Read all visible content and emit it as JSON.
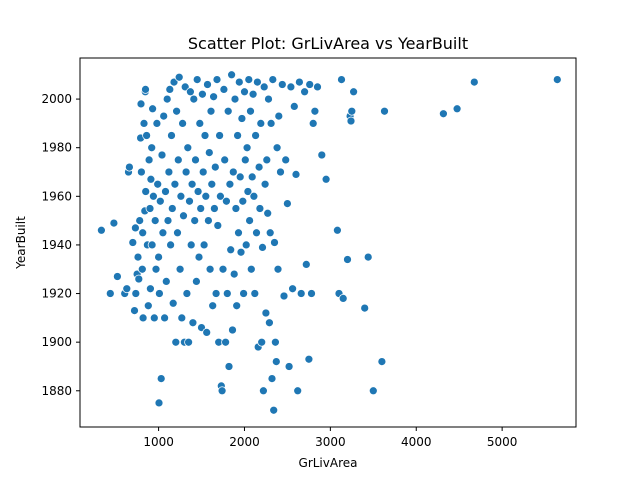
{
  "chart_data": {
    "type": "scatter",
    "title": "Scatter Plot: GrLivArea vs YearBuilt",
    "xlabel": "GrLivArea",
    "ylabel": "YearBuilt",
    "xlim": [
      85,
      5860
    ],
    "ylim": [
      1865.1,
      2016.9
    ],
    "xticks": [
      1000,
      2000,
      3000,
      4000,
      5000
    ],
    "yticks": [
      1880,
      1900,
      1920,
      1940,
      1960,
      1980,
      2000
    ],
    "grid": false,
    "legend": "none",
    "marker_color": "#1f77b4",
    "marker_edge": "#ffffff",
    "series": [
      {
        "points": [
          [
            334,
            1946
          ],
          [
            438,
            1920
          ],
          [
            480,
            1949
          ],
          [
            520,
            1927
          ],
          [
            605,
            1920
          ],
          [
            630,
            1922
          ],
          [
            650,
            1970
          ],
          [
            660,
            1972
          ],
          [
            700,
            1941
          ],
          [
            720,
            1913
          ],
          [
            730,
            1947
          ],
          [
            735,
            1920
          ],
          [
            750,
            1928
          ],
          [
            760,
            1935
          ],
          [
            770,
            1926
          ],
          [
            780,
            1950
          ],
          [
            790,
            1984
          ],
          [
            795,
            1998
          ],
          [
            800,
            1970
          ],
          [
            810,
            1930
          ],
          [
            815,
            1945
          ],
          [
            820,
            1910
          ],
          [
            830,
            1990
          ],
          [
            840,
            1954
          ],
          [
            845,
            2003
          ],
          [
            848,
            2004
          ],
          [
            850,
            1962
          ],
          [
            860,
            1985
          ],
          [
            870,
            1940
          ],
          [
            880,
            1915
          ],
          [
            890,
            1975
          ],
          [
            900,
            1955
          ],
          [
            905,
            1922
          ],
          [
            910,
            1967
          ],
          [
            920,
            1980
          ],
          [
            925,
            1940
          ],
          [
            930,
            1996
          ],
          [
            940,
            1960
          ],
          [
            950,
            1910
          ],
          [
            960,
            1950
          ],
          [
            970,
            1930
          ],
          [
            980,
            1990
          ],
          [
            990,
            1965
          ],
          [
            1000,
            1935
          ],
          [
            1005,
            1875
          ],
          [
            1010,
            1920
          ],
          [
            1020,
            1958
          ],
          [
            1030,
            1885
          ],
          [
            1040,
            1977
          ],
          [
            1050,
            1945
          ],
          [
            1060,
            1993
          ],
          [
            1070,
            1910
          ],
          [
            1080,
            1962
          ],
          [
            1090,
            1925
          ],
          [
            1100,
            2000
          ],
          [
            1110,
            1950
          ],
          [
            1120,
            1970
          ],
          [
            1130,
            2004
          ],
          [
            1140,
            1940
          ],
          [
            1150,
            1985
          ],
          [
            1160,
            1955
          ],
          [
            1170,
            1916
          ],
          [
            1180,
            2007
          ],
          [
            1190,
            1965
          ],
          [
            1200,
            1900
          ],
          [
            1210,
            1995
          ],
          [
            1220,
            1945
          ],
          [
            1230,
            1975
          ],
          [
            1240,
            2009
          ],
          [
            1250,
            1930
          ],
          [
            1260,
            1960
          ],
          [
            1270,
            1910
          ],
          [
            1280,
            1990
          ],
          [
            1290,
            1952
          ],
          [
            1300,
            1900
          ],
          [
            1310,
            2005
          ],
          [
            1320,
            1970
          ],
          [
            1330,
            1920
          ],
          [
            1340,
            1980
          ],
          [
            1350,
            1900
          ],
          [
            1360,
            1958
          ],
          [
            1370,
            2003
          ],
          [
            1380,
            1940
          ],
          [
            1390,
            1965
          ],
          [
            1400,
            1908
          ],
          [
            1410,
            2000
          ],
          [
            1420,
            1950
          ],
          [
            1430,
            1975
          ],
          [
            1440,
            1925
          ],
          [
            1450,
            2008
          ],
          [
            1460,
            1962
          ],
          [
            1470,
            1935
          ],
          [
            1480,
            1990
          ],
          [
            1490,
            1955
          ],
          [
            1500,
            1906
          ],
          [
            1510,
            2002
          ],
          [
            1520,
            1970
          ],
          [
            1530,
            1940
          ],
          [
            1540,
            1985
          ],
          [
            1550,
            1960
          ],
          [
            1560,
            1904
          ],
          [
            1570,
            2006
          ],
          [
            1580,
            1950
          ],
          [
            1590,
            1978
          ],
          [
            1600,
            1930
          ],
          [
            1610,
            1995
          ],
          [
            1620,
            1965
          ],
          [
            1630,
            1915
          ],
          [
            1640,
            2001
          ],
          [
            1650,
            1955
          ],
          [
            1660,
            1972
          ],
          [
            1670,
            1920
          ],
          [
            1680,
            2008
          ],
          [
            1690,
            1948
          ],
          [
            1700,
            1900
          ],
          [
            1710,
            1985
          ],
          [
            1720,
            1960
          ],
          [
            1730,
            1882
          ],
          [
            1740,
            1880
          ],
          [
            1750,
            1930
          ],
          [
            1760,
            2004
          ],
          [
            1770,
            1975
          ],
          [
            1780,
            1900
          ],
          [
            1790,
            1958
          ],
          [
            1800,
            1920
          ],
          [
            1810,
            1995
          ],
          [
            1820,
            1890
          ],
          [
            1830,
            1965
          ],
          [
            1840,
            1938
          ],
          [
            1850,
            2010
          ],
          [
            1860,
            1905
          ],
          [
            1870,
            1970
          ],
          [
            1880,
            1928
          ],
          [
            1890,
            2000
          ],
          [
            1900,
            1955
          ],
          [
            1910,
            1915
          ],
          [
            1920,
            1985
          ],
          [
            1930,
            1945
          ],
          [
            1940,
            2007
          ],
          [
            1950,
            1968
          ],
          [
            1960,
            1937
          ],
          [
            1970,
            1992
          ],
          [
            1980,
            1958
          ],
          [
            1990,
            1920
          ],
          [
            2000,
            2003
          ],
          [
            2010,
            1975
          ],
          [
            2020,
            1940
          ],
          [
            2030,
            1980
          ],
          [
            2040,
            1962
          ],
          [
            2050,
            2008
          ],
          [
            2060,
            1950
          ],
          [
            2070,
            1995
          ],
          [
            2080,
            1930
          ],
          [
            2090,
            1968
          ],
          [
            2100,
            2002
          ],
          [
            2110,
            1960
          ],
          [
            2120,
            1920
          ],
          [
            2130,
            1985
          ],
          [
            2140,
            1945
          ],
          [
            2150,
            2007
          ],
          [
            2160,
            1898
          ],
          [
            2170,
            1972
          ],
          [
            2180,
            1955
          ],
          [
            2190,
            1990
          ],
          [
            2200,
            1900
          ],
          [
            2210,
            1939
          ],
          [
            2220,
            1880
          ],
          [
            2230,
            2005
          ],
          [
            2240,
            1965
          ],
          [
            2250,
            1912
          ],
          [
            2260,
            1975
          ],
          [
            2270,
            1953
          ],
          [
            2280,
            2000
          ],
          [
            2290,
            1908
          ],
          [
            2300,
            1945
          ],
          [
            2310,
            1990
          ],
          [
            2320,
            1885
          ],
          [
            2330,
            2008
          ],
          [
            2340,
            1872
          ],
          [
            2350,
            1941
          ],
          [
            2360,
            1900
          ],
          [
            2370,
            1892
          ],
          [
            2380,
            1980
          ],
          [
            2390,
            1930
          ],
          [
            2400,
            1993
          ],
          [
            2420,
            1970
          ],
          [
            2440,
            2006
          ],
          [
            2460,
            1919
          ],
          [
            2480,
            1975
          ],
          [
            2500,
            1957
          ],
          [
            2520,
            1890
          ],
          [
            2540,
            2005
          ],
          [
            2560,
            1922
          ],
          [
            2580,
            1997
          ],
          [
            2600,
            1969
          ],
          [
            2620,
            1880
          ],
          [
            2640,
            2007
          ],
          [
            2660,
            1920
          ],
          [
            2700,
            2003
          ],
          [
            2720,
            1932
          ],
          [
            2750,
            1893
          ],
          [
            2760,
            2006
          ],
          [
            2780,
            1920
          ],
          [
            2800,
            1990
          ],
          [
            2820,
            1995
          ],
          [
            2850,
            2005
          ],
          [
            2900,
            1977
          ],
          [
            2950,
            1967
          ],
          [
            3082,
            1946
          ],
          [
            3100,
            1920
          ],
          [
            3130,
            2008
          ],
          [
            3150,
            1918
          ],
          [
            3200,
            1934
          ],
          [
            3230,
            1993
          ],
          [
            3240,
            1991
          ],
          [
            3250,
            1995
          ],
          [
            3270,
            2003
          ],
          [
            3400,
            1914
          ],
          [
            3440,
            1935
          ],
          [
            3500,
            1880
          ],
          [
            3600,
            1892
          ],
          [
            3630,
            1995
          ],
          [
            4316,
            1994
          ],
          [
            4476,
            1996
          ],
          [
            4676,
            2007
          ],
          [
            5642,
            2008
          ]
        ]
      }
    ]
  }
}
